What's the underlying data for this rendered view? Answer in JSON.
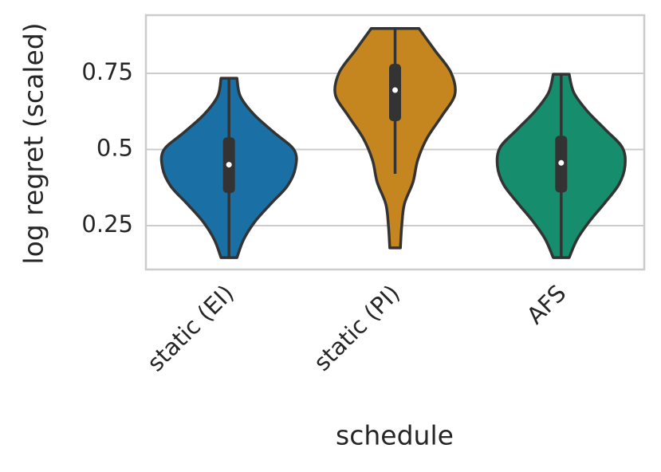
{
  "chart_data": {
    "type": "violin",
    "x_label": "schedule",
    "y_label": "log regret (scaled)",
    "categories": [
      "static (EI)",
      "static (PI)",
      "AFS"
    ],
    "ylim": [
      0.106,
      0.941
    ],
    "yticks": [
      0.25,
      0.5,
      0.75
    ],
    "grid": true,
    "violins": [
      {
        "color": "#1a6fa5",
        "min": 0.145,
        "max": 0.734,
        "whisker_low": 0.145,
        "whisker_high": 0.734,
        "q1": 0.357,
        "median": 0.45,
        "q3": 0.54,
        "shape": [
          0.12,
          0.22,
          0.39,
          0.63,
          0.88,
          1.0,
          0.98,
          0.67,
          0.37,
          0.17,
          0.12
        ]
      },
      {
        "color": "#c5861f",
        "min": 0.177,
        "max": 0.897,
        "whisker_low": 0.42,
        "whisker_high": 0.897,
        "q1": 0.593,
        "median": 0.695,
        "q3": 0.781,
        "shape": [
          0.08,
          0.1,
          0.14,
          0.27,
          0.34,
          0.48,
          0.7,
          0.9,
          0.84,
          0.6,
          0.36
        ]
      },
      {
        "color": "#168d6c",
        "min": 0.145,
        "max": 0.747,
        "whisker_low": 0.145,
        "whisker_high": 0.747,
        "q1": 0.359,
        "median": 0.456,
        "q3": 0.545,
        "shape": [
          0.12,
          0.24,
          0.43,
          0.66,
          0.87,
          0.96,
          0.92,
          0.66,
          0.39,
          0.19,
          0.12
        ]
      }
    ]
  }
}
